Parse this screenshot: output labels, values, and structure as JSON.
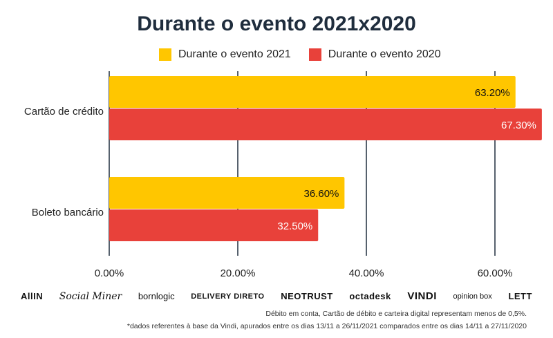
{
  "chart_data": {
    "type": "bar",
    "orientation": "horizontal",
    "title": "Durante o evento 2021x2020",
    "categories": [
      "Cartão de crédito",
      "Boleto bancário"
    ],
    "series": [
      {
        "name": "Durante o evento 2021",
        "values": [
          63.2,
          36.6
        ],
        "labels": [
          "63.20%",
          "36.60%"
        ],
        "color": "#FFC600"
      },
      {
        "name": "Durante o evento 2020",
        "values": [
          67.3,
          32.5
        ],
        "labels": [
          "67.30%",
          "32.50%"
        ],
        "color": "#E8413A"
      }
    ],
    "xlim": [
      0,
      68
    ],
    "xticks": [
      0,
      20,
      40,
      60
    ],
    "xtick_labels": [
      "0.00%",
      "20.00%",
      "40.00%",
      "60.00%"
    ],
    "grid": true,
    "legend_position": "top"
  },
  "logos": [
    {
      "name": "allin-logo",
      "text": "AllIN"
    },
    {
      "name": "social-miner-logo",
      "text": "Social Miner"
    },
    {
      "name": "bornlogic-logo",
      "text": "bornlogic"
    },
    {
      "name": "delivery-direto-logo",
      "text": "DELIVERY DIRETO"
    },
    {
      "name": "neotrust-logo",
      "text": "NEOTRUST"
    },
    {
      "name": "octadesk-logo",
      "text": "octadesk"
    },
    {
      "name": "vindi-logo",
      "text": "VINDI"
    },
    {
      "name": "opinion-box-logo",
      "text": "opinion box"
    },
    {
      "name": "lett-logo",
      "text": "LETT"
    }
  ],
  "footnotes": {
    "note1": "Débito em conta, Cartão de débito e carteira digital representam menos de 0,5%.",
    "note2": "*dados referentes à base da Vindi, apurados entre os dias 13/11 a 26/11/2021 comparados entre os dias 14/11 a 27/11/2020"
  }
}
